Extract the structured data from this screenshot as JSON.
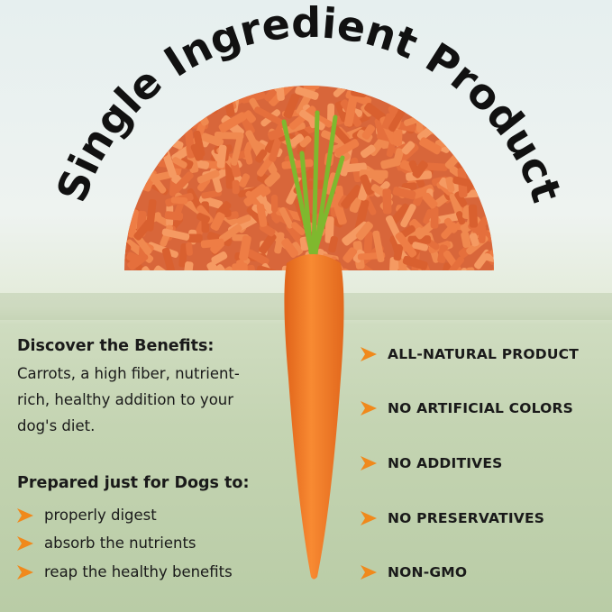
{
  "title": "Single Ingredient Product",
  "benefits": {
    "heading": "Discover the Benefits:",
    "lines": [
      "Carrots, a high fiber, nutrient-",
      "rich, healthy addition to your",
      "dog's diet."
    ]
  },
  "prepared": {
    "heading": "Prepared just for Dogs to:",
    "items": [
      "properly digest",
      "absorb the nutrients",
      "reap the healthy benefits"
    ]
  },
  "features": [
    "ALL-NATURAL PRODUCT",
    "NO ARTIFICIAL COLORS",
    "NO ADDITIVES",
    "NO PRESERVATIVES",
    "NON-GMO"
  ],
  "colors": {
    "accent": "#f0891c",
    "carrot": "#f07a25",
    "stem": "#7fb82e",
    "pellets": "#e8784a"
  },
  "icons": {
    "bullet": "chevron-right-icon"
  }
}
